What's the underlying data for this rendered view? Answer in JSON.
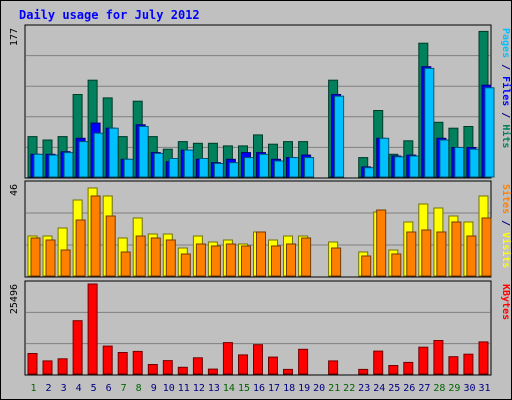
{
  "title": "Daily usage for July 2012",
  "colors": {
    "outer_bg": "#C0C0C0",
    "panel_bg": "#C0C0C0",
    "title_text": "#0000FF",
    "weekday_text": "#000080",
    "weekend_text": "#006400",
    "hits": "#00805C",
    "files": "#0000FF",
    "pages": "#00C0FF",
    "visits": "#FFFF00",
    "sites": "#FF8000",
    "kbytes": "#FF0000"
  },
  "chart_data": [
    {
      "type": "bar",
      "title": "Daily usage for July 2012",
      "ymax_label": "177",
      "ylim": [
        0,
        177
      ],
      "right_label_parts": [
        {
          "text": "Pages",
          "color": "#00C0FF"
        },
        {
          "text": " / ",
          "color": "#000080"
        },
        {
          "text": "Files",
          "color": "#0000FF"
        },
        {
          "text": " / ",
          "color": "#000080"
        },
        {
          "text": "Hits",
          "color": "#00805C"
        }
      ],
      "categories": [
        "1",
        "2",
        "3",
        "4",
        "5",
        "6",
        "7",
        "8",
        "9",
        "10",
        "11",
        "12",
        "13",
        "14",
        "15",
        "16",
        "17",
        "18",
        "19",
        "20",
        "21",
        "22",
        "23",
        "24",
        "25",
        "26",
        "27",
        "28",
        "29",
        "30",
        "31"
      ],
      "weekend_days": [
        "1",
        "7",
        "8",
        "14",
        "15",
        "21",
        "22",
        "28",
        "29"
      ],
      "series": [
        {
          "name": "Hits",
          "color": "#00805C",
          "values": [
            48,
            44,
            48,
            98,
            115,
            94,
            48,
            90,
            48,
            33,
            42,
            40,
            40,
            37,
            37,
            50,
            39,
            42,
            42,
            0,
            115,
            0,
            23,
            79,
            27,
            43,
            159,
            65,
            58,
            60,
            173
          ]
        },
        {
          "name": "Files",
          "color": "#0000FF",
          "values": [
            27,
            27,
            30,
            46,
            64,
            58,
            21,
            62,
            29,
            18,
            32,
            21,
            17,
            21,
            29,
            29,
            21,
            23,
            26,
            0,
            98,
            0,
            12,
            46,
            25,
            26,
            131,
            46,
            35,
            35,
            109
          ]
        },
        {
          "name": "Pages",
          "color": "#00C0FF",
          "values": [
            27,
            26,
            29,
            42,
            52,
            58,
            21,
            60,
            28,
            22,
            32,
            22,
            16,
            17,
            23,
            27,
            19,
            23,
            23,
            0,
            96,
            0,
            11,
            46,
            24,
            25,
            129,
            44,
            35,
            33,
            106
          ]
        }
      ]
    },
    {
      "type": "bar",
      "ymax_label": "46",
      "ylim": [
        0,
        46
      ],
      "right_label_parts": [
        {
          "text": "Sites",
          "color": "#FF8000"
        },
        {
          "text": " / ",
          "color": "#000080"
        },
        {
          "text": "Visits",
          "color": "#FFFF00"
        }
      ],
      "categories": [
        "1",
        "2",
        "3",
        "4",
        "5",
        "6",
        "7",
        "8",
        "9",
        "10",
        "11",
        "12",
        "13",
        "14",
        "15",
        "16",
        "17",
        "18",
        "19",
        "20",
        "21",
        "22",
        "23",
        "24",
        "25",
        "26",
        "27",
        "28",
        "29",
        "30",
        "31"
      ],
      "series": [
        {
          "name": "Visits",
          "color": "#FFFF00",
          "values": [
            20,
            20,
            24,
            38,
            44,
            40,
            19,
            29,
            21,
            21,
            14,
            20,
            17,
            18,
            16,
            22,
            18,
            20,
            20,
            0,
            17,
            0,
            12,
            32,
            13,
            27,
            36,
            34,
            30,
            27,
            40
          ]
        },
        {
          "name": "Sites",
          "color": "#FF8000",
          "values": [
            19,
            18,
            13,
            28,
            40,
            30,
            12,
            20,
            19,
            18,
            11,
            16,
            15,
            16,
            15,
            22,
            15,
            16,
            19,
            0,
            14,
            0,
            10,
            33,
            11,
            22,
            23,
            22,
            27,
            20,
            29
          ]
        }
      ]
    },
    {
      "type": "bar",
      "ymax_label": "25496",
      "ylim": [
        0,
        25496
      ],
      "right_label_parts": [
        {
          "text": "KBytes",
          "color": "#FF0000"
        }
      ],
      "categories": [
        "1",
        "2",
        "3",
        "4",
        "5",
        "6",
        "7",
        "8",
        "9",
        "10",
        "11",
        "12",
        "13",
        "14",
        "15",
        "16",
        "17",
        "18",
        "19",
        "20",
        "21",
        "22",
        "23",
        "24",
        "25",
        "26",
        "27",
        "28",
        "29",
        "30",
        "31"
      ],
      "series": [
        {
          "name": "KBytes",
          "color": "#FF0000",
          "values": [
            5800,
            3700,
            4300,
            15100,
            25496,
            7900,
            6100,
            6400,
            2700,
            3800,
            1900,
            4600,
            1400,
            8900,
            5400,
            8300,
            4800,
            1300,
            7000,
            0,
            3700,
            0,
            1300,
            6500,
            2400,
            3300,
            7600,
            9500,
            4900,
            5600,
            9100
          ]
        }
      ]
    }
  ]
}
